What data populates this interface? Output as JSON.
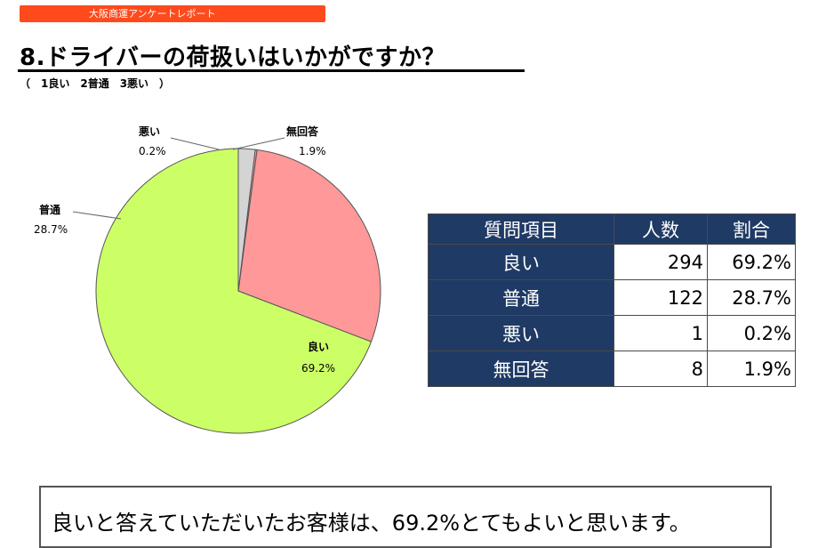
{
  "header": {
    "banner": "大阪商運アンケートレポート",
    "title": "8.ドライバーの荷扱いはいかがですか？",
    "subtitle": "（　1良い　2普通　3悪い　）"
  },
  "chart_data": {
    "type": "pie",
    "title": "",
    "slices": [
      {
        "name": "良い",
        "value": 69.2,
        "label": "69.2%",
        "color": "#ccff66"
      },
      {
        "name": "普通",
        "value": 28.7,
        "label": "28.7%",
        "color": "#ff9999"
      },
      {
        "name": "悪い",
        "value": 0.2,
        "label": "0.2%",
        "color": "#ff9999"
      },
      {
        "name": "無回答",
        "value": 1.9,
        "label": "1.9%",
        "color": "#d4d4d4"
      }
    ]
  },
  "table": {
    "headers": [
      "質問項目",
      "人数",
      "割合"
    ],
    "rows": [
      [
        "良い",
        "294",
        "69.2%"
      ],
      [
        "普通",
        "122",
        "28.7%"
      ],
      [
        "悪い",
        "1",
        "0.2%"
      ],
      [
        "無回答",
        "8",
        "1.9%"
      ]
    ]
  },
  "comment": "良いと答えていただいたお客様は、69.2%とてもよいと思います。"
}
